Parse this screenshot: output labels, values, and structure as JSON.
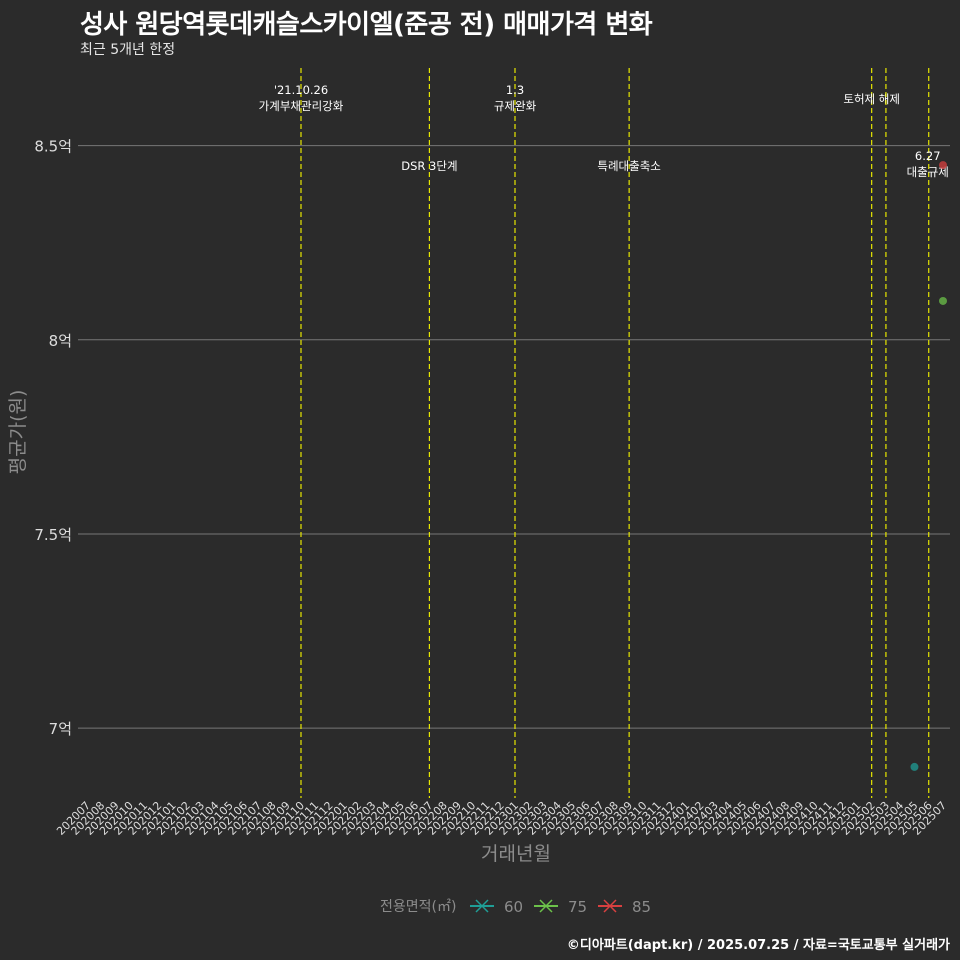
{
  "title": "성사 원당역롯데캐슬스카이엘(준공 전) 매매가격 변화",
  "subtitle": "최근 5개년 한정",
  "caption": "©디아파트(dapt.kr) / 2025.07.25 / 자료=국토교통부 실거래가",
  "colors": {
    "background": "#2b2b2b",
    "grid": "#777777",
    "event_line": "#e6e600",
    "axis_text": "#dddddd",
    "axis_title": "#8c8c8c"
  },
  "chart_data": {
    "type": "scatter",
    "title": "성사 원당역롯데캐슬스카이엘(준공 전) 매매가격 변화",
    "subtitle": "최근 5개년 한정",
    "xlabel": "거래년월",
    "ylabel": "평균가(원)",
    "ylim": [
      6.82,
      8.7
    ],
    "yticks": [
      {
        "value": 7.0,
        "label": "7억"
      },
      {
        "value": 7.5,
        "label": "7.5억"
      },
      {
        "value": 8.0,
        "label": "8억"
      },
      {
        "value": 8.5,
        "label": "8.5억"
      }
    ],
    "x_categories": [
      "202007",
      "202008",
      "202009",
      "202010",
      "202011",
      "202012",
      "202101",
      "202102",
      "202103",
      "202104",
      "202105",
      "202106",
      "202107",
      "202108",
      "202109",
      "202110",
      "202111",
      "202112",
      "202201",
      "202202",
      "202203",
      "202204",
      "202205",
      "202206",
      "202207",
      "202208",
      "202209",
      "202210",
      "202211",
      "202212",
      "202301",
      "202302",
      "202303",
      "202304",
      "202305",
      "202306",
      "202307",
      "202308",
      "202309",
      "202310",
      "202311",
      "202312",
      "202401",
      "202402",
      "202403",
      "202404",
      "202405",
      "202406",
      "202407",
      "202408",
      "202409",
      "202410",
      "202411",
      "202412",
      "202501",
      "202502",
      "202503",
      "202504",
      "202505",
      "202506",
      "202507"
    ],
    "legend_title": "전용면적(㎡)",
    "series": [
      {
        "name": "60",
        "color": "#1f9e96",
        "points": [
          {
            "x": "202505",
            "y": 6.9
          }
        ]
      },
      {
        "name": "75",
        "color": "#6cc24a",
        "points": [
          {
            "x": "202507",
            "y": 8.1
          }
        ]
      },
      {
        "name": "85",
        "color": "#d94040",
        "points": [
          {
            "x": "202507",
            "y": 8.45
          }
        ]
      }
    ],
    "events": [
      {
        "x": "202110",
        "label_lines": [
          "'21.10.26",
          "가계부채관리강화"
        ],
        "row": "top"
      },
      {
        "x": "202207",
        "label_lines": [
          "DSR 3단계"
        ],
        "row": "low"
      },
      {
        "x": "202301",
        "label_lines": [
          "1.3",
          "규제완화"
        ],
        "row": "top"
      },
      {
        "x": "202309",
        "label_lines": [
          "특례대출축소"
        ],
        "row": "low"
      },
      {
        "x": "202502",
        "label_lines": [
          "토허제 해제"
        ],
        "row": "mid"
      },
      {
        "x": "202503",
        "label_lines": [],
        "row": "none"
      },
      {
        "x": "202506",
        "label_lines": [
          "6.27",
          "대출규제"
        ],
        "row": "right"
      }
    ]
  }
}
